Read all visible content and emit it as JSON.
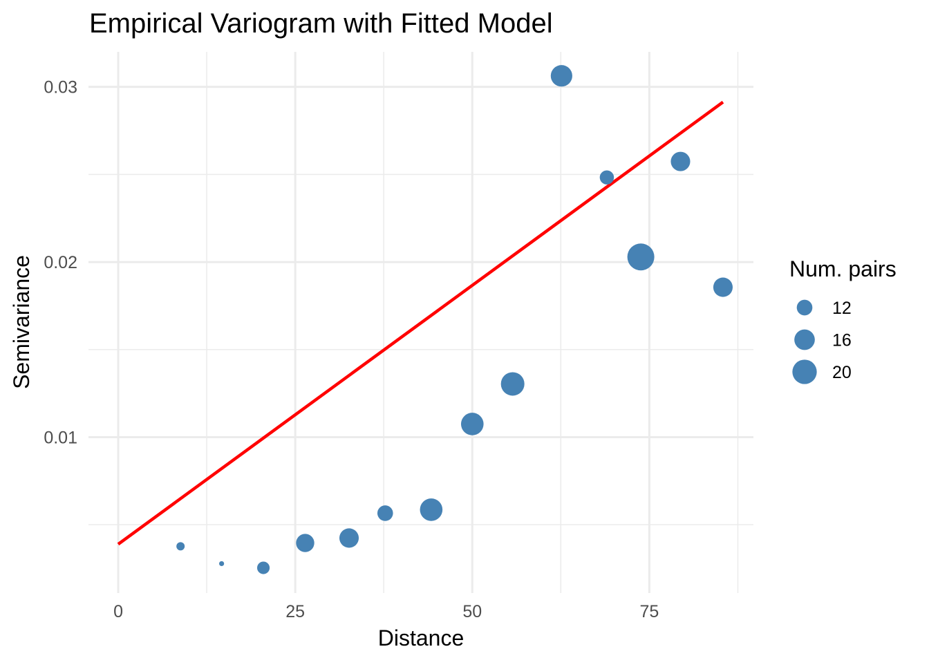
{
  "chart_data": {
    "type": "scatter",
    "title": "Empirical Variogram with Fitted Model",
    "xlabel": "Distance",
    "ylabel": "Semivariance",
    "xlim": [
      -4.2,
      89.7
    ],
    "ylim": [
      0.0011,
      0.032
    ],
    "x_ticks": [
      0,
      25,
      50,
      75
    ],
    "x_tick_labels": [
      "0",
      "25",
      "50",
      "75"
    ],
    "y_ticks": [
      0.01,
      0.02,
      0.03
    ],
    "y_tick_labels": [
      "0.01",
      "0.02",
      "0.03"
    ],
    "grid": true,
    "points": {
      "x": [
        8.8,
        14.6,
        20.5,
        26.4,
        32.6,
        37.7,
        44.2,
        50.0,
        55.7,
        62.6,
        69.0,
        73.8,
        79.4,
        85.4
      ],
      "y": [
        0.00377,
        0.00278,
        0.00254,
        0.00396,
        0.00424,
        0.00566,
        0.00586,
        0.01075,
        0.01304,
        0.03063,
        0.02483,
        0.02029,
        0.02574,
        0.01856
      ],
      "np": [
        8,
        7,
        10,
        14,
        15,
        12,
        18,
        18,
        19,
        17,
        11,
        23,
        15,
        15
      ],
      "color": "#4682B4"
    },
    "fitted_line": {
      "x": [
        0,
        85.4
      ],
      "y": [
        0.00389,
        0.02913
      ],
      "color": "#FF0000"
    },
    "legend": {
      "title": "Num. pairs",
      "placement": "right",
      "entries": [
        {
          "label": "12",
          "value": 12
        },
        {
          "label": "16",
          "value": 16
        },
        {
          "label": "20",
          "value": 20
        }
      ]
    }
  }
}
